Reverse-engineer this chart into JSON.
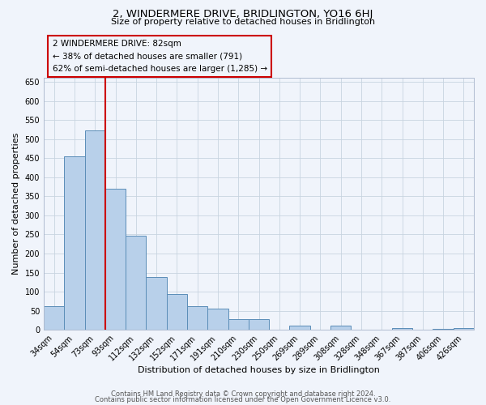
{
  "title": "2, WINDERMERE DRIVE, BRIDLINGTON, YO16 6HJ",
  "subtitle": "Size of property relative to detached houses in Bridlington",
  "xlabel": "Distribution of detached houses by size in Bridlington",
  "ylabel": "Number of detached properties",
  "bar_labels": [
    "34sqm",
    "54sqm",
    "73sqm",
    "93sqm",
    "112sqm",
    "132sqm",
    "152sqm",
    "171sqm",
    "191sqm",
    "210sqm",
    "230sqm",
    "250sqm",
    "269sqm",
    "289sqm",
    "308sqm",
    "328sqm",
    "348sqm",
    "367sqm",
    "387sqm",
    "406sqm",
    "426sqm"
  ],
  "bar_heights": [
    63,
    455,
    522,
    370,
    247,
    138,
    93,
    62,
    55,
    27,
    27,
    0,
    10,
    0,
    10,
    0,
    0,
    5,
    0,
    3,
    5
  ],
  "bar_color": "#b8d0ea",
  "bar_edge_color": "#5b8db8",
  "ylim": [
    0,
    660
  ],
  "yticks": [
    0,
    50,
    100,
    150,
    200,
    250,
    300,
    350,
    400,
    450,
    500,
    550,
    600,
    650
  ],
  "property_line_color": "#cc0000",
  "annotation_title": "2 WINDERMERE DRIVE: 82sqm",
  "annotation_line1": "← 38% of detached houses are smaller (791)",
  "annotation_line2": "62% of semi-detached houses are larger (1,285) →",
  "annotation_box_color": "#cc0000",
  "footer1": "Contains HM Land Registry data © Crown copyright and database right 2024.",
  "footer2": "Contains public sector information licensed under the Open Government Licence v3.0.",
  "bg_color": "#f0f4fb",
  "grid_color": "#c8d4e0",
  "title_fontsize": 9.5,
  "subtitle_fontsize": 8,
  "ylabel_fontsize": 8,
  "xlabel_fontsize": 8,
  "tick_fontsize": 7,
  "annotation_fontsize": 7.5,
  "footer_fontsize": 6
}
